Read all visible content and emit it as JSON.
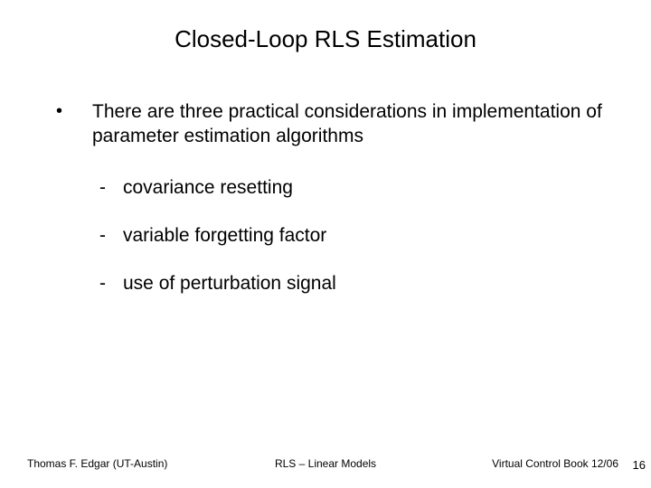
{
  "slide": {
    "title": "Closed-Loop  RLS Estimation",
    "background_color": "#ffffff",
    "text_color": "#000000",
    "title_fontsize": 26,
    "body_fontsize": 21,
    "footer_fontsize": 12,
    "font_family": "Arial"
  },
  "content": {
    "bullet_marker": "•",
    "main_text": "There are three practical considerations in implementation of parameter estimation algorithms",
    "sub_marker": "-",
    "sub_items": [
      "covariance resetting",
      "variable forgetting factor",
      "use of perturbation signal"
    ]
  },
  "footer": {
    "left": "Thomas F. Edgar (UT-Austin)",
    "center": "RLS – Linear Models",
    "right": "Virtual Control Book 12/06"
  },
  "page_number": "16"
}
